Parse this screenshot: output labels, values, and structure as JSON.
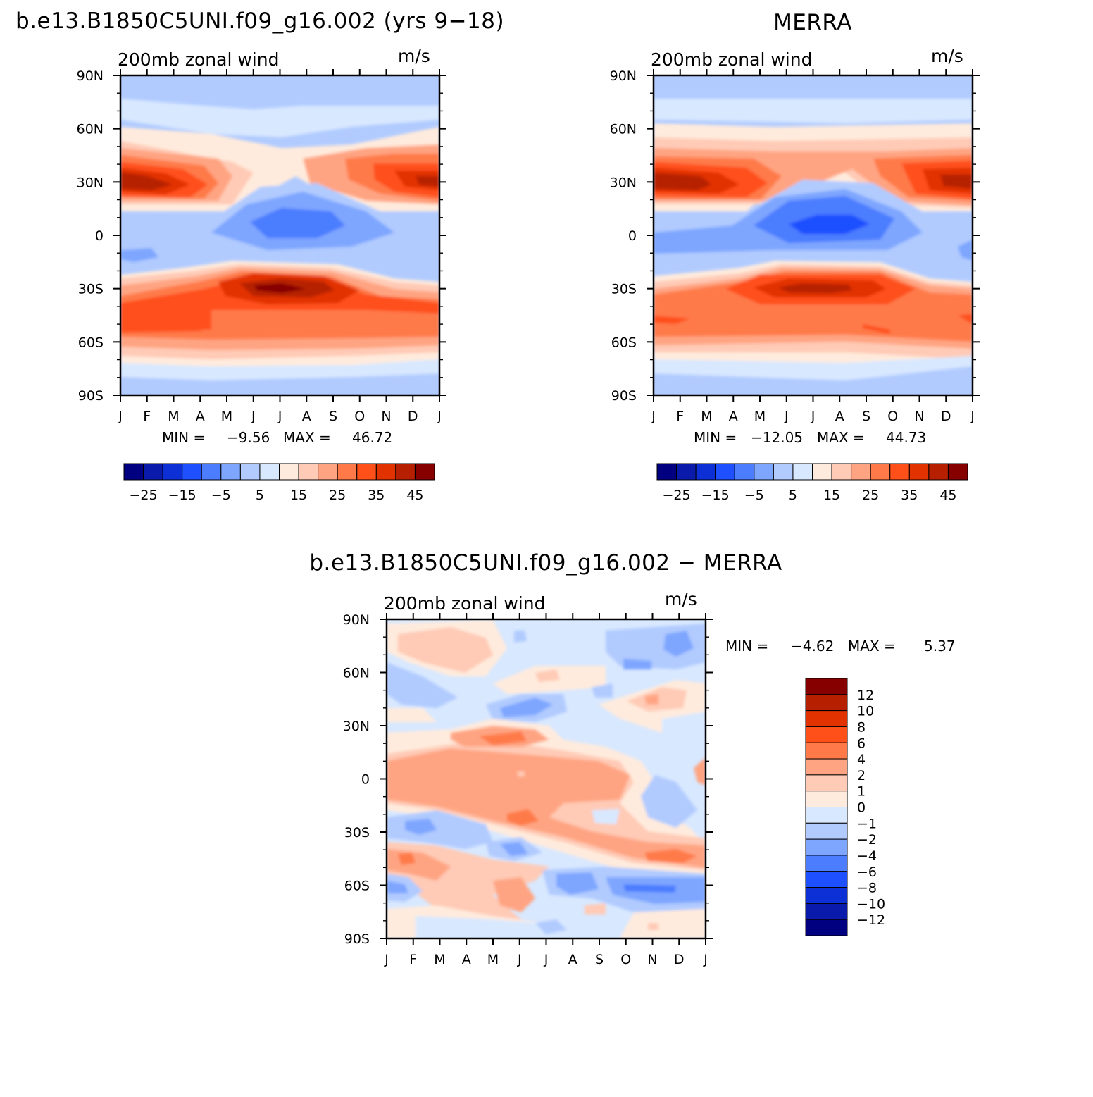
{
  "panels": [
    {
      "id": "model",
      "title": "b.e13.B1850C5UNI.f09_g16.002 (yrs 9−18)",
      "left_label": "200mb zonal wind",
      "right_label": "m/s",
      "stats": {
        "min_label": "MIN =",
        "min": "−9.56",
        "max_label": "MAX =",
        "max": "46.72"
      }
    },
    {
      "id": "obs",
      "title": "MERRA",
      "left_label": "200mb zonal wind",
      "right_label": "m/s",
      "stats": {
        "min_label": "MIN =",
        "min": "−12.05",
        "max_label": "MAX =",
        "max": "44.73"
      }
    },
    {
      "id": "diff",
      "title": "b.e13.B1850C5UNI.f09_g16.002 − MERRA",
      "left_label": "200mb zonal wind",
      "right_label": "m/s",
      "stats": {
        "min_label": "MIN =",
        "min": "−4.62",
        "max_label": "MAX =",
        "max": "5.37"
      }
    }
  ],
  "x_ticks": [
    "J",
    "F",
    "M",
    "A",
    "M",
    "J",
    "J",
    "A",
    "S",
    "O",
    "N",
    "D",
    "J"
  ],
  "y_ticks": [
    "90N",
    "60N",
    "30N",
    "0",
    "30S",
    "60S",
    "90S"
  ],
  "colorbar_main": {
    "colors": [
      "#000080",
      "#0a1aaa",
      "#0c30d6",
      "#1e50ff",
      "#4c7dff",
      "#7ea6ff",
      "#b1cbff",
      "#d8e8ff",
      "#ffebdd",
      "#ffcab6",
      "#ffa482",
      "#ff7a48",
      "#ff501a",
      "#e23200",
      "#b62000",
      "#860000"
    ],
    "labels": [
      "−25",
      "−15",
      "−5",
      "5",
      "15",
      "25",
      "35",
      "45"
    ]
  },
  "colorbar_diff": {
    "colors_top_to_bottom": [
      "#860000",
      "#b62000",
      "#e23200",
      "#ff501a",
      "#ff7a48",
      "#ffa482",
      "#ffcab6",
      "#ffebdd",
      "#d8e8ff",
      "#b1cbff",
      "#7ea6ff",
      "#4c7dff",
      "#1e50ff",
      "#0c30d6",
      "#0a1aaa",
      "#000080"
    ],
    "labels": [
      "12",
      "10",
      "8",
      "6",
      "4",
      "2",
      "1",
      "0",
      "−1",
      "−2",
      "−4",
      "−6",
      "−8",
      "−10",
      "−12"
    ]
  },
  "chart_data": [
    {
      "type": "heatmap",
      "title": "b.e13.B1850C5UNI.f09_g16.002 (yrs 9−18)",
      "variable": "200mb zonal wind",
      "units": "m/s",
      "x": [
        "J",
        "F",
        "M",
        "A",
        "M",
        "J",
        "J",
        "A",
        "S",
        "O",
        "N",
        "D",
        "J"
      ],
      "y": [
        "90N",
        "60N",
        "30N",
        "0",
        "30S",
        "60S",
        "90S"
      ],
      "values": [
        [
          3,
          3,
          2,
          2,
          3,
          3,
          3,
          3,
          3,
          3,
          3,
          3,
          3
        ],
        [
          10,
          10,
          9,
          6,
          6,
          6,
          6,
          6,
          7,
          9,
          10,
          11,
          10
        ],
        [
          42,
          45,
          40,
          28,
          14,
          6,
          3,
          7,
          18,
          30,
          38,
          42,
          42
        ],
        [
          -1,
          -2,
          -2,
          -3,
          -5,
          -7,
          -8,
          -7,
          -5,
          -3,
          -1,
          0,
          -1
        ],
        [
          20,
          22,
          24,
          30,
          38,
          44,
          46,
          42,
          36,
          30,
          25,
          22,
          20
        ],
        [
          16,
          16,
          14,
          14,
          15,
          16,
          16,
          16,
          17,
          18,
          18,
          16,
          16
        ],
        [
          4,
          4,
          4,
          3,
          2,
          2,
          2,
          2,
          2,
          2,
          3,
          4,
          4
        ]
      ],
      "extremes": {
        "min": -9.56,
        "max": 46.72
      }
    },
    {
      "type": "heatmap",
      "title": "MERRA",
      "variable": "200mb zonal wind",
      "units": "m/s",
      "x": [
        "J",
        "F",
        "M",
        "A",
        "M",
        "J",
        "J",
        "A",
        "S",
        "O",
        "N",
        "D",
        "J"
      ],
      "y": [
        "90N",
        "60N",
        "30N",
        "0",
        "30S",
        "60S",
        "90S"
      ],
      "values": [
        [
          3,
          3,
          3,
          3,
          3,
          3,
          3,
          3,
          3,
          3,
          3,
          3,
          3
        ],
        [
          10,
          10,
          10,
          9,
          8,
          8,
          8,
          8,
          9,
          10,
          11,
          11,
          10
        ],
        [
          42,
          44,
          40,
          30,
          16,
          8,
          5,
          8,
          18,
          30,
          38,
          42,
          42
        ],
        [
          -2,
          -3,
          -3,
          -4,
          -7,
          -9,
          -11,
          -9,
          -6,
          -3,
          -2,
          -2,
          -2
        ],
        [
          20,
          22,
          24,
          30,
          36,
          40,
          42,
          40,
          36,
          30,
          25,
          22,
          20
        ],
        [
          16,
          16,
          16,
          17,
          18,
          18,
          18,
          18,
          18,
          18,
          17,
          16,
          16
        ],
        [
          4,
          4,
          4,
          3,
          3,
          3,
          3,
          3,
          3,
          3,
          3,
          4,
          4
        ]
      ],
      "extremes": {
        "min": -12.05,
        "max": 44.73
      }
    },
    {
      "type": "heatmap",
      "title": "b.e13.B1850C5UNI.f09_g16.002 − MERRA",
      "variable": "200mb zonal wind",
      "units": "m/s",
      "x": [
        "J",
        "F",
        "M",
        "A",
        "M",
        "J",
        "J",
        "A",
        "S",
        "O",
        "N",
        "D",
        "J"
      ],
      "y": [
        "90N",
        "60N",
        "30N",
        "0",
        "30S",
        "60S",
        "90S"
      ],
      "values": [
        [
          -0.5,
          1.5,
          1.5,
          1.0,
          -0.5,
          -0.5,
          -0.5,
          -0.5,
          -0.5,
          -0.8,
          -1.5,
          -2.5,
          -0.5
        ],
        [
          -1.2,
          -0.5,
          0.5,
          -0.5,
          0.5,
          1.5,
          0.5,
          0.5,
          0.5,
          -0.5,
          -0.5,
          0.5,
          -0.8
        ],
        [
          1.0,
          0.5,
          1.5,
          2.0,
          3.0,
          1.5,
          0.5,
          -0.5,
          -0.5,
          -0.5,
          -0.5,
          -0.8,
          1.0
        ],
        [
          2.5,
          2.5,
          2.5,
          2.5,
          2.0,
          1.5,
          2.0,
          2.5,
          2.0,
          1.0,
          -1.5,
          0.5,
          2.5
        ],
        [
          -0.5,
          -1.5,
          -0.5,
          0.5,
          1.0,
          2.0,
          2.5,
          2.5,
          1.5,
          1.5,
          1.5,
          1.0,
          -0.5
        ],
        [
          -1.5,
          1.5,
          1.5,
          0.5,
          0.5,
          -0.5,
          -1.5,
          -0.5,
          -2.0,
          -2.5,
          -2.5,
          -0.5,
          -1.5
        ],
        [
          0.5,
          -0.5,
          -0.5,
          -0.5,
          -0.5,
          -0.5,
          -0.5,
          -0.5,
          -0.5,
          -0.5,
          0.5,
          0.5,
          0.5
        ]
      ],
      "extremes": {
        "min": -4.62,
        "max": 5.37
      }
    }
  ]
}
